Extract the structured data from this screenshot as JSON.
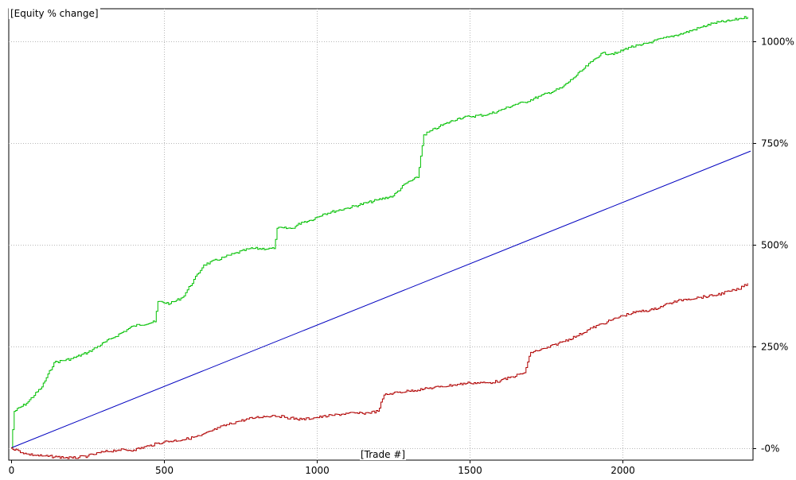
{
  "chart_data": {
    "type": "line",
    "title": "[Equity % change]",
    "xlabel": "[Trade #]",
    "ylabel": "",
    "xlim": [
      0,
      2420
    ],
    "ylim": [
      -30,
      1080
    ],
    "x_ticks": [
      0,
      500,
      1000,
      1500,
      2000
    ],
    "x_tick_labels": [
      "0",
      "500",
      "1000",
      "1500",
      "2000"
    ],
    "y_ticks": [
      0,
      250,
      500,
      750,
      1000
    ],
    "y_tick_labels": [
      "-0%",
      "250%",
      "500%",
      "750%",
      "1000%"
    ],
    "grid": true,
    "y_axis_side": "right",
    "series": [
      {
        "color": "#00c000",
        "x": [
          0,
          10,
          50,
          100,
          140,
          200,
          250,
          330,
          400,
          470,
          480,
          520,
          560,
          630,
          700,
          780,
          860,
          870,
          920,
          950,
          980,
          1020,
          1100,
          1200,
          1250,
          1290,
          1330,
          1350,
          1400,
          1460,
          1500,
          1560,
          1600,
          1650,
          1680,
          1730,
          1800,
          1840,
          1870,
          1900,
          1930,
          1980,
          2020,
          2060,
          2100,
          2150,
          2200,
          2260,
          2300,
          2350,
          2380,
          2410
        ],
        "values": [
          0,
          90,
          110,
          150,
          210,
          220,
          235,
          270,
          300,
          310,
          360,
          355,
          370,
          450,
          470,
          490,
          490,
          540,
          540,
          555,
          560,
          575,
          590,
          610,
          620,
          650,
          665,
          770,
          790,
          810,
          815,
          820,
          830,
          845,
          850,
          865,
          885,
          910,
          930,
          950,
          970,
          970,
          985,
          990,
          1000,
          1010,
          1020,
          1035,
          1045,
          1050,
          1055,
          1060
        ]
      },
      {
        "color": "#0000c0",
        "x": [
          0,
          2420
        ],
        "values": [
          0,
          730
        ]
      },
      {
        "color": "#b00000",
        "x": [
          0,
          50,
          100,
          150,
          200,
          250,
          300,
          350,
          400,
          450,
          500,
          560,
          620,
          680,
          740,
          800,
          860,
          900,
          950,
          1000,
          1050,
          1100,
          1150,
          1200,
          1220,
          1250,
          1300,
          1350,
          1400,
          1450,
          1500,
          1560,
          1600,
          1640,
          1680,
          1700,
          1750,
          1800,
          1850,
          1900,
          1950,
          2000,
          2050,
          2100,
          2150,
          2200,
          2250,
          2300,
          2350,
          2380,
          2410
        ],
        "values": [
          0,
          -15,
          -20,
          -22,
          -25,
          -20,
          -10,
          -5,
          -5,
          5,
          15,
          20,
          30,
          50,
          65,
          75,
          80,
          75,
          70,
          75,
          80,
          85,
          85,
          90,
          130,
          135,
          140,
          145,
          150,
          155,
          160,
          160,
          165,
          175,
          185,
          235,
          245,
          260,
          275,
          295,
          310,
          325,
          335,
          340,
          355,
          365,
          370,
          375,
          385,
          390,
          405
        ]
      }
    ]
  }
}
